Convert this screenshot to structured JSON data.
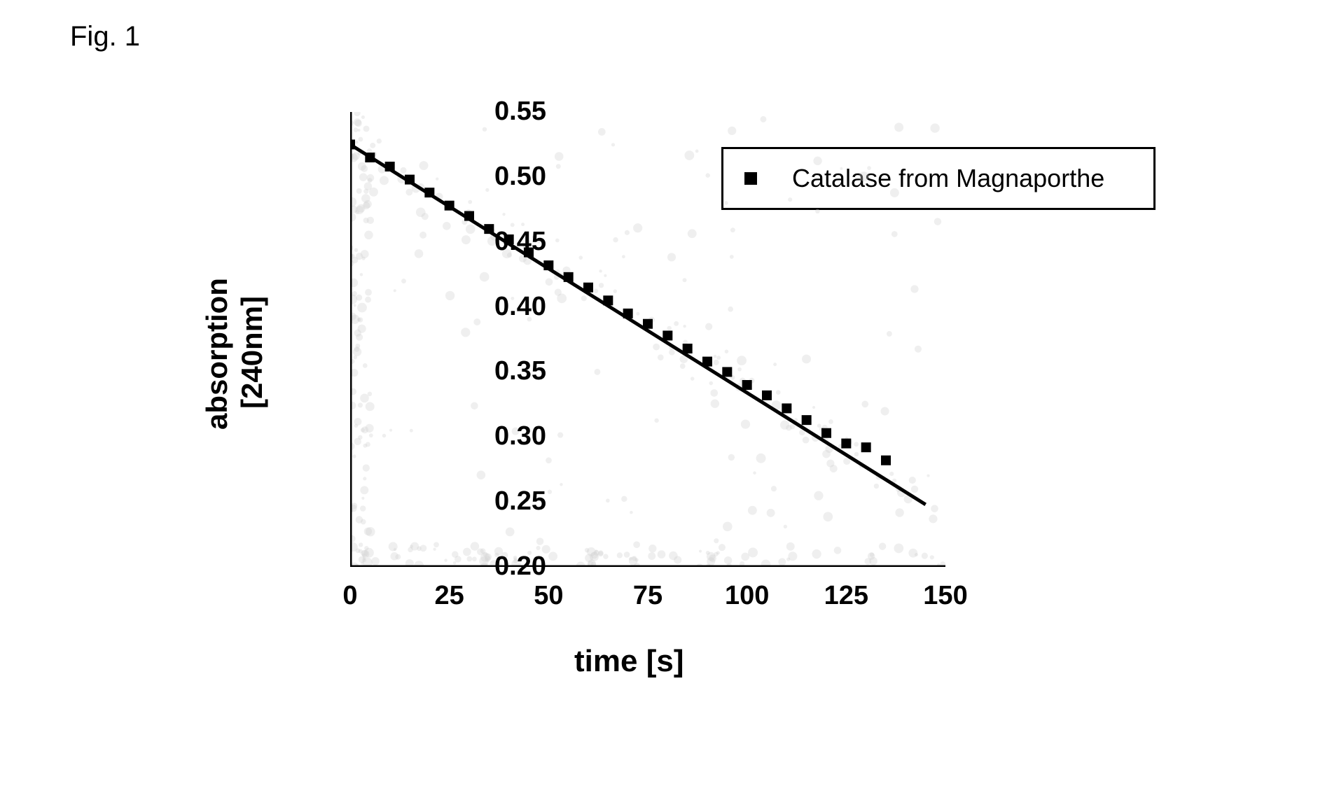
{
  "figure_label": "Fig. 1",
  "chart": {
    "type": "scatter-line",
    "xlabel": "time [s]",
    "ylabel_line1": "absorption",
    "ylabel_line2": "[240nm]",
    "xlim": [
      0,
      150
    ],
    "ylim": [
      0.2,
      0.55
    ],
    "xtick_step": 25,
    "ytick_step": 0.05,
    "xticks": [
      0,
      25,
      50,
      75,
      100,
      125,
      150
    ],
    "yticks": [
      0.2,
      0.25,
      0.3,
      0.35,
      0.4,
      0.45,
      0.5,
      0.55
    ],
    "xtick_labels": [
      "0",
      "25",
      "50",
      "75",
      "100",
      "125",
      "150"
    ],
    "ytick_labels": [
      "0.20",
      "0.25",
      "0.30",
      "0.35",
      "0.40",
      "0.45",
      "0.50",
      "0.55"
    ],
    "background_color": "#ffffff",
    "axis_color": "#000000",
    "axis_width": 5,
    "tick_width": 4,
    "tick_length_out": 12,
    "label_fontsize": 42,
    "tick_fontsize": 38,
    "marker_style": "square",
    "marker_size": 14,
    "marker_color": "#000000",
    "line_color": "#000000",
    "line_width": 5,
    "grain_color": "#d0d0d0",
    "grain_opacity": 0.35,
    "legend": {
      "label": "Catalase from Magnaporthe",
      "marker": "square",
      "position": "top-right",
      "border_color": "#000000",
      "border_width": 3,
      "fontsize": 36
    },
    "fit_line": {
      "x1": 0,
      "y1": 0.525,
      "x2": 145,
      "y2": 0.248
    },
    "series": [
      {
        "x": 0,
        "y": 0.525
      },
      {
        "x": 5,
        "y": 0.515
      },
      {
        "x": 10,
        "y": 0.508
      },
      {
        "x": 15,
        "y": 0.498
      },
      {
        "x": 20,
        "y": 0.488
      },
      {
        "x": 25,
        "y": 0.478
      },
      {
        "x": 30,
        "y": 0.47
      },
      {
        "x": 35,
        "y": 0.46
      },
      {
        "x": 40,
        "y": 0.452
      },
      {
        "x": 45,
        "y": 0.442
      },
      {
        "x": 50,
        "y": 0.432
      },
      {
        "x": 55,
        "y": 0.423
      },
      {
        "x": 60,
        "y": 0.415
      },
      {
        "x": 65,
        "y": 0.405
      },
      {
        "x": 70,
        "y": 0.395
      },
      {
        "x": 75,
        "y": 0.387
      },
      {
        "x": 80,
        "y": 0.378
      },
      {
        "x": 85,
        "y": 0.368
      },
      {
        "x": 90,
        "y": 0.358
      },
      {
        "x": 95,
        "y": 0.35
      },
      {
        "x": 100,
        "y": 0.34
      },
      {
        "x": 105,
        "y": 0.332
      },
      {
        "x": 110,
        "y": 0.322
      },
      {
        "x": 115,
        "y": 0.313
      },
      {
        "x": 120,
        "y": 0.303
      },
      {
        "x": 125,
        "y": 0.295
      },
      {
        "x": 130,
        "y": 0.292
      },
      {
        "x": 135,
        "y": 0.282
      }
    ]
  }
}
